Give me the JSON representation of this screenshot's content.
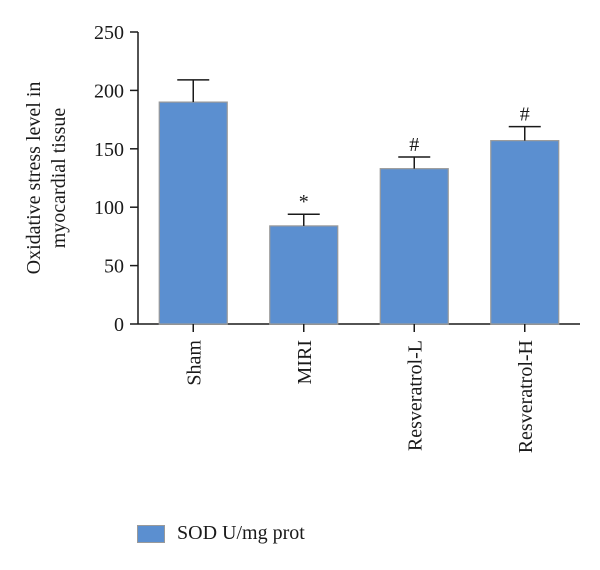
{
  "chart_data": {
    "type": "bar",
    "categories": [
      "Sham",
      "MIRI",
      "Resveratrol-L",
      "Resveratrol-H"
    ],
    "series": [
      {
        "name": "SOD U/mg prot",
        "values": [
          190,
          84,
          133,
          157
        ],
        "error": [
          19,
          10,
          10,
          12
        ],
        "markers": [
          "",
          "*",
          "#",
          "#"
        ]
      }
    ],
    "ylabel": "Oxidative stress level in myocardial tissue",
    "ylabel_lines": [
      "Oxidative stress level in",
      "myocardial tissue"
    ],
    "ylim": [
      0,
      250
    ],
    "yticks": [
      0,
      50,
      100,
      150,
      200,
      250
    ],
    "grid": false,
    "legend_position": "bottom-left",
    "bar_color": "#5b8fd0"
  }
}
